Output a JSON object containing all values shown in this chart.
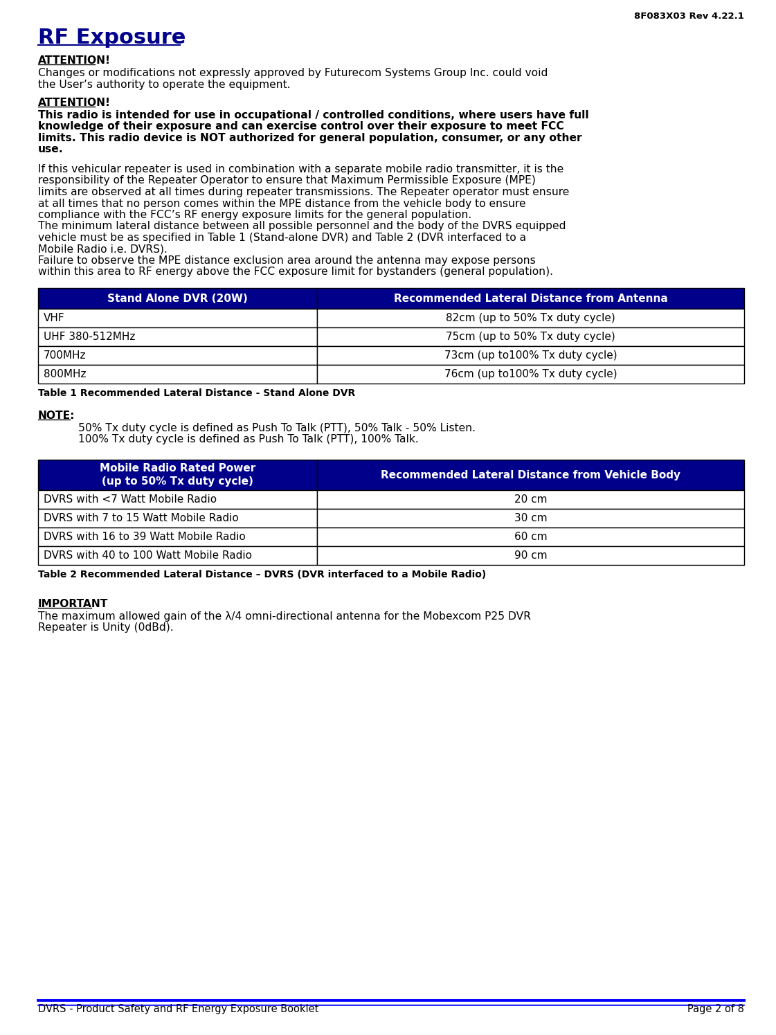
{
  "header_text": "8F083X03 Rev 4.22.1",
  "title": "RF Exposure",
  "title_color": "#00008B",
  "body_color": "#000000",
  "background_color": "#FFFFFF",
  "table_header_bg": "#00008B",
  "table_header_fg": "#FFFFFF",
  "table_row_bg": "#FFFFFF",
  "table_border_color": "#000000",
  "footer_line_color": "#0000FF",
  "footer_text_left": "DVRS - Product Safety and RF Energy Exposure Booklet",
  "footer_text_right": "Page 2 of 8",
  "attention1_label": "ATTENTION!",
  "attention1_body": "Changes or modifications not expressly approved by Futurecom Systems Group Inc. could void\nthe User’s authority to operate the equipment.",
  "attention2_label": "ATTENTION!",
  "attention2_body_bold": "This radio is intended for use in occupational / controlled conditions, where users have full\nknowledge of their exposure and can exercise control over their exposure to meet FCC\nlimits. This radio device is NOT authorized for general population, consumer, or any other\nuse.",
  "para1_lines": [
    "If this vehicular repeater is used in combination with a separate mobile radio transmitter, it is the",
    "responsibility of the Repeater Operator to ensure that Maximum Permissible Exposure (MPE)",
    "limits are observed at all times during repeater transmissions. The Repeater operator must ensure",
    "at all times that no person comes within the MPE distance from the vehicle body to ensure",
    "compliance with the FCC’s RF energy exposure limits for the general population.",
    "The minimum lateral distance between all possible personnel and the body of the DVRS equipped",
    "vehicle must be as specified in Table 1 (Stand-alone DVR) and Table 2 (DVR interfaced to a",
    "Mobile Radio i.e. DVRS).",
    "Failure to observe the MPE distance exclusion area around the antenna may expose persons",
    "within this area to RF energy above the FCC exposure limit for bystanders (general population)."
  ],
  "table1_headers": [
    "Stand Alone DVR (20W)",
    "Recommended Lateral Distance from Antenna"
  ],
  "table1_rows": [
    [
      "VHF",
      "82cm (up to 50% Tx duty cycle)"
    ],
    [
      "UHF 380-512MHz",
      "75cm (up to 50% Tx duty cycle)"
    ],
    [
      "700MHz",
      "73cm (up to100% Tx duty cycle)"
    ],
    [
      "800MHz",
      "76cm (up to100% Tx duty cycle)"
    ]
  ],
  "table1_caption": "Table 1 Recommended Lateral Distance - Stand Alone DVR",
  "note_label": "NOTE:",
  "note_lines": [
    "50% Tx duty cycle is defined as Push To Talk (PTT), 50% Talk - 50% Listen.",
    "100% Tx duty cycle is defined as Push To Talk (PTT), 100% Talk."
  ],
  "table2_header1": "Mobile Radio Rated Power\n(up to 50% Tx duty cycle)",
  "table2_header2": "Recommended Lateral Distance from Vehicle Body",
  "table2_rows": [
    [
      "DVRS with <7 Watt Mobile Radio",
      "20 cm"
    ],
    [
      "DVRS with 7 to 15 Watt Mobile Radio",
      "30 cm"
    ],
    [
      "DVRS with 16 to 39 Watt Mobile Radio",
      "60 cm"
    ],
    [
      "DVRS with 40 to 100 Watt Mobile Radio",
      "90 cm"
    ]
  ],
  "table2_caption": "Table 2 Recommended Lateral Distance – DVRS (DVR interfaced to a Mobile Radio)",
  "important_label": "IMPORTANT",
  "important_lines": [
    "The maximum allowed gain of the λ/4 omni-directional antenna for the Mobexcom P25 DVR",
    "Repeater is Unity (0dBd)."
  ]
}
